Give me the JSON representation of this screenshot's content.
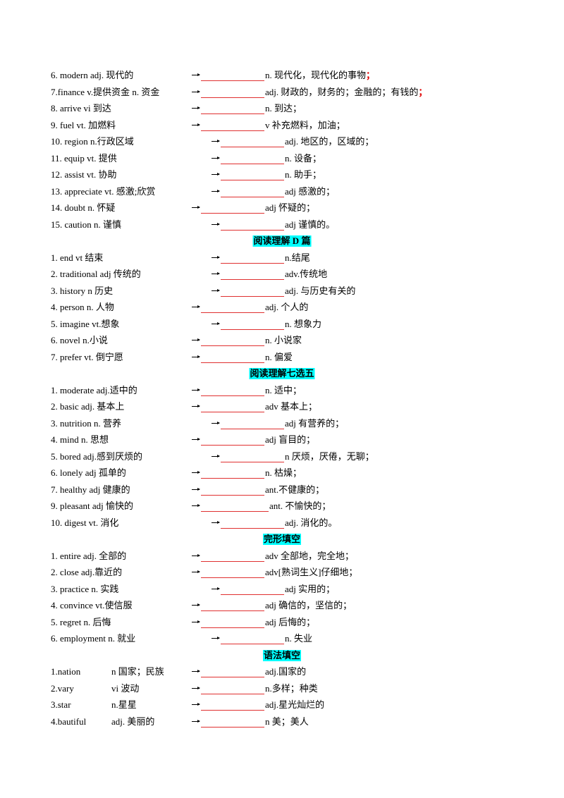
{
  "sections": [
    {
      "rows": [
        {
          "term": "6. modern adj. 现代的",
          "answer": "n. 现代化，现代化的事物",
          "mark": "；"
        },
        {
          "term": "7.finance v.提供资金 n. 资金",
          "answer": "adj. 财政的，财务的；金融的；有钱的",
          "mark": "；"
        },
        {
          "term": "8. arrive vi 到达",
          "answer": "n. 到达；"
        },
        {
          "term": "9. fuel vt. 加燃料",
          "answer": "v 补充燃料，加油；"
        },
        {
          "term": "10. region n.行政区域",
          "answer": "adj. 地区的，区域的；"
        },
        {
          "term": "11. equip vt. 提供",
          "answer": "n. 设备；"
        },
        {
          "term": "12. assist vt. 协助",
          "answer": "n. 助手；"
        },
        {
          "term": "13. appreciate vt. 感激;欣赏",
          "answer": "adj 感激的；"
        },
        {
          "term": "14. doubt n. 怀疑",
          "answer": "adj 怀疑的；"
        },
        {
          "term": "15. caution n. 谨慎",
          "answer": "adj 谨慎的。"
        }
      ]
    },
    {
      "heading": "阅读理解 D 篇",
      "rows": [
        {
          "term": "1. end vt 结束",
          "answer": "n.结尾"
        },
        {
          "term": "2. traditional adj 传统的",
          "answer": "adv.传统地"
        },
        {
          "term": "3. history n 历史",
          "answer": "adj. 与历史有关的"
        },
        {
          "term": "4. person n. 人物",
          "answer": "adj. 个人的"
        },
        {
          "term": "5. imagine vt.想象",
          "answer": "n. 想象力"
        },
        {
          "term": "6. novel n.小说",
          "answer": "n. 小说家"
        },
        {
          "term": "7. prefer vt. 倒宁愿",
          "answer": "n. 偏爱"
        }
      ]
    },
    {
      "heading": "阅读理解七选五",
      "rows": [
        {
          "term": "1. moderate adj.适中的",
          "answer": "n. 适中；"
        },
        {
          "term": "2. basic adj. 基本上",
          "answer": "adv 基本上；"
        },
        {
          "term": "3. nutrition n. 营养",
          "answer": "adj 有营养的；"
        },
        {
          "term": "4. mind n. 思想",
          "answer": "adj 盲目的；"
        },
        {
          "term": "5. bored adj.感到厌烦的",
          "answer": "n 厌烦，厌倦，无聊；"
        },
        {
          "term": "6. lonely adj 孤单的",
          "answer": "n. 枯燥；"
        },
        {
          "term": "7. healthy adj 健康的",
          "answer": "ant.不健康的；"
        },
        {
          "term": "9. pleasant adj 愉快的",
          "answer": "ant. 不愉快的；"
        },
        {
          "term": "10. digest vt. 消化",
          "answer": "adj. 消化的。"
        }
      ]
    },
    {
      "heading": "完形填空",
      "rows": [
        {
          "term": "1. entire adj. 全部的",
          "answer": "adv 全部地，完全地；"
        },
        {
          "term": "2. close adj.靠近的",
          "answer": "adv[熟词生义]仔细地；"
        },
        {
          "term": "3. practice n. 实践",
          "answer": "adj 实用的；"
        },
        {
          "term": "4. convince vt.使信服",
          "answer": "adj 确信的，坚信的；"
        },
        {
          "term": "5. regret n. 后悔",
          "answer": "adj 后悔的；"
        },
        {
          "term": "6. employment n. 就业",
          "answer": "n. 失业"
        }
      ]
    },
    {
      "heading": "语法填空",
      "rows": [
        {
          "term": "1.nation",
          "pos": "n 国家；民族",
          "answer": "adj.国家的"
        },
        {
          "term": "2.vary",
          "pos": "vi 波动",
          "answer": "n.多样；种类"
        },
        {
          "term": "3.star",
          "pos": "n.星星",
          "answer": "adj.星光灿烂的"
        },
        {
          "term": "4.bautiful",
          "pos": "adj. 美丽的",
          "answer": "n 美；美人"
        }
      ]
    }
  ]
}
